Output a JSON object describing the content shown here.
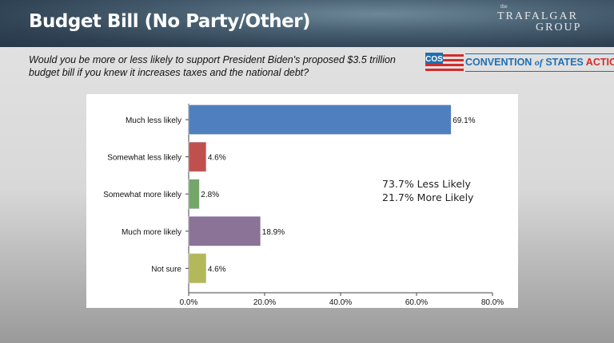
{
  "header": {
    "title": "Budget Bill (No Party/Other)",
    "logo_text": "the TRAFALGAR GROUP"
  },
  "question": "Would you be more or less likely to support President Biden's proposed $3.5 trillion budget bill if you knew it increases taxes and the national debt?",
  "cos_logo": {
    "badge": "COS",
    "text_a": "CONVENTION",
    "text_of": "of",
    "text_b": "STATES",
    "text_c": "ACTION"
  },
  "summary": {
    "less": "73.7% Less Likely",
    "more": "21.7% More Likely"
  },
  "chart_data": {
    "type": "bar",
    "orientation": "horizontal",
    "categories": [
      "Much less likely",
      "Somewhat less likely",
      "Somewhat more likely",
      "Much more likely",
      "Not sure"
    ],
    "values": [
      69.1,
      4.6,
      2.8,
      18.9,
      4.6
    ],
    "value_labels": [
      "69.1%",
      "4.6%",
      "2.8%",
      "18.9%",
      "4.6%"
    ],
    "colors": [
      "#4f7fbf",
      "#c0504d",
      "#74a66a",
      "#8b7397",
      "#b3b85a"
    ],
    "xlim": [
      0,
      80
    ],
    "xticks": [
      "0.0%",
      "20.0%",
      "40.0%",
      "60.0%",
      "80.0%"
    ],
    "grid": false
  }
}
